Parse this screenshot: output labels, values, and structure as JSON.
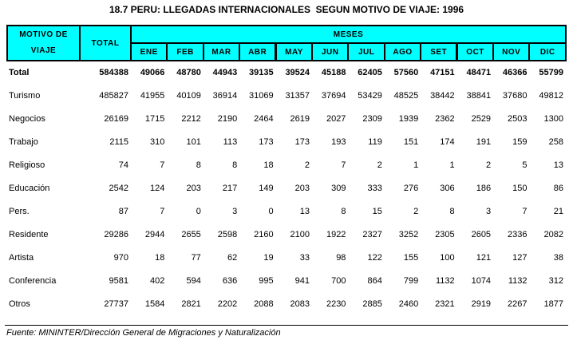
{
  "title": "18.7 PERU: LLEGADAS INTERNACIONALES  SEGUN MOTIVO DE VIAJE: 1996",
  "colors": {
    "header_bg": "#00ffff",
    "border": "#000000",
    "text": "#000000",
    "background": "#ffffff"
  },
  "table": {
    "header": {
      "motivo_line1": "MOTIVO DE",
      "motivo_line2": "VIAJE",
      "total_label": "TOTAL",
      "meses_label": "MESES",
      "months": [
        "ENE",
        "FEB",
        "MAR",
        "ABR",
        "MAY",
        "JUN",
        "JUL",
        "AGO",
        "SET",
        "OCT",
        "NOV",
        "DIC"
      ]
    },
    "rows": [
      {
        "label": "Total",
        "bold": true,
        "total": "584388",
        "values": [
          "49066",
          "48780",
          "44943",
          "39135",
          "39524",
          "45188",
          "62405",
          "57560",
          "47151",
          "48471",
          "46366",
          "55799"
        ]
      },
      {
        "label": "Turismo",
        "bold": false,
        "total": "485827",
        "values": [
          "41955",
          "40109",
          "36914",
          "31069",
          "31357",
          "37694",
          "53429",
          "48525",
          "38442",
          "38841",
          "37680",
          "49812"
        ]
      },
      {
        "label": "Negocios",
        "bold": false,
        "total": "26169",
        "values": [
          "1715",
          "2212",
          "2190",
          "2464",
          "2619",
          "2027",
          "2309",
          "1939",
          "2362",
          "2529",
          "2503",
          "1300"
        ]
      },
      {
        "label": "Trabajo",
        "bold": false,
        "total": "2115",
        "values": [
          "310",
          "101",
          "113",
          "173",
          "173",
          "193",
          "119",
          "151",
          "174",
          "191",
          "159",
          "258"
        ]
      },
      {
        "label": "Religioso",
        "bold": false,
        "total": "74",
        "values": [
          "7",
          "8",
          "8",
          "18",
          "2",
          "7",
          "2",
          "1",
          "1",
          "2",
          "5",
          "13"
        ]
      },
      {
        "label": "Educación",
        "bold": false,
        "total": "2542",
        "values": [
          "124",
          "203",
          "217",
          "149",
          "203",
          "309",
          "333",
          "276",
          "306",
          "186",
          "150",
          "86"
        ]
      },
      {
        "label": "Pers.",
        "bold": false,
        "total": "87",
        "values": [
          "7",
          "0",
          "3",
          "0",
          "13",
          "8",
          "15",
          "2",
          "8",
          "3",
          "7",
          "21"
        ]
      },
      {
        "label": "Residente",
        "bold": false,
        "total": "29286",
        "values": [
          "2944",
          "2655",
          "2598",
          "2160",
          "2100",
          "1922",
          "2327",
          "3252",
          "2305",
          "2605",
          "2336",
          "2082"
        ]
      },
      {
        "label": "Artista",
        "bold": false,
        "total": "970",
        "values": [
          "18",
          "77",
          "62",
          "19",
          "33",
          "98",
          "122",
          "155",
          "100",
          "121",
          "127",
          "38"
        ]
      },
      {
        "label": "Conferencia",
        "bold": false,
        "total": "9581",
        "values": [
          "402",
          "594",
          "636",
          "995",
          "941",
          "700",
          "864",
          "799",
          "1132",
          "1074",
          "1132",
          "312"
        ]
      },
      {
        "label": "Otros",
        "bold": false,
        "total": "27737",
        "values": [
          "1584",
          "2821",
          "2202",
          "2088",
          "2083",
          "2230",
          "2885",
          "2460",
          "2321",
          "2919",
          "2267",
          "1877"
        ]
      }
    ]
  },
  "footer": {
    "source": "Fuente: MININTER/Dirección General de Migraciones y Naturalización"
  }
}
